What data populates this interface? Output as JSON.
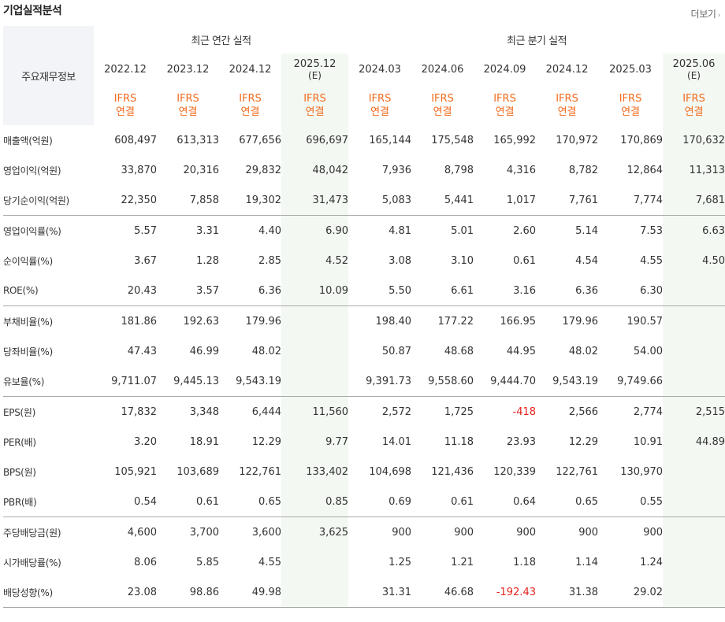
{
  "section_title": "기업실적분석",
  "more_label": "더보기",
  "key_header": "주요재무정보",
  "groups": {
    "annual": "최근 연간 실적",
    "quarter": "최근 분기 실적"
  },
  "periods": [
    {
      "label": "2022.12",
      "est": false
    },
    {
      "label": "2023.12",
      "est": false
    },
    {
      "label": "2024.12",
      "est": false
    },
    {
      "label": "2025.12",
      "est": true
    },
    {
      "label": "2024.03",
      "est": false
    },
    {
      "label": "2024.06",
      "est": false
    },
    {
      "label": "2024.09",
      "est": false
    },
    {
      "label": "2024.12",
      "est": false
    },
    {
      "label": "2025.03",
      "est": false
    },
    {
      "label": "2025.06",
      "est": true
    }
  ],
  "est_mark": "(E)",
  "ifrs_label": "IFRS",
  "consolidated_label": "연결",
  "rows": [
    {
      "label": "매출액(억원)",
      "values": [
        "608,497",
        "613,313",
        "677,656",
        "696,697",
        "165,144",
        "175,548",
        "165,992",
        "170,972",
        "170,869",
        "170,632"
      ]
    },
    {
      "label": "영업이익(억원)",
      "values": [
        "33,870",
        "20,316",
        "29,832",
        "48,042",
        "7,936",
        "8,798",
        "4,316",
        "8,782",
        "12,864",
        "11,313"
      ]
    },
    {
      "label": "당기순이익(억원)",
      "values": [
        "22,350",
        "7,858",
        "19,302",
        "31,473",
        "5,083",
        "5,441",
        "1,017",
        "7,761",
        "7,774",
        "7,681"
      ],
      "group_end": true
    },
    {
      "label": "영업이익률(%)",
      "values": [
        "5.57",
        "3.31",
        "4.40",
        "6.90",
        "4.81",
        "5.01",
        "2.60",
        "5.14",
        "7.53",
        "6.63"
      ]
    },
    {
      "label": "순이익률(%)",
      "values": [
        "3.67",
        "1.28",
        "2.85",
        "4.52",
        "3.08",
        "3.10",
        "0.61",
        "4.54",
        "4.55",
        "4.50"
      ]
    },
    {
      "label": "ROE(%)",
      "values": [
        "20.43",
        "3.57",
        "6.36",
        "10.09",
        "5.50",
        "6.61",
        "3.16",
        "6.36",
        "6.30",
        ""
      ],
      "group_end": true
    },
    {
      "label": "부채비율(%)",
      "values": [
        "181.86",
        "192.63",
        "179.96",
        "",
        "198.40",
        "177.22",
        "166.95",
        "179.96",
        "190.57",
        ""
      ]
    },
    {
      "label": "당좌비율(%)",
      "values": [
        "47.43",
        "46.99",
        "48.02",
        "",
        "50.87",
        "48.68",
        "44.95",
        "48.02",
        "54.00",
        ""
      ]
    },
    {
      "label": "유보율(%)",
      "values": [
        "9,711.07",
        "9,445.13",
        "9,543.19",
        "",
        "9,391.73",
        "9,558.60",
        "9,444.70",
        "9,543.19",
        "9,749.66",
        ""
      ],
      "group_end": true
    },
    {
      "label": "EPS(원)",
      "values": [
        "17,832",
        "3,348",
        "6,444",
        "11,560",
        "2,572",
        "1,725",
        "-418",
        "2,566",
        "2,774",
        "2,515"
      ]
    },
    {
      "label": "PER(배)",
      "values": [
        "3.20",
        "18.91",
        "12.29",
        "9.77",
        "14.01",
        "11.18",
        "23.93",
        "12.29",
        "10.91",
        "44.89"
      ]
    },
    {
      "label": "BPS(원)",
      "values": [
        "105,921",
        "103,689",
        "122,761",
        "133,402",
        "104,698",
        "121,436",
        "120,339",
        "122,761",
        "130,970",
        ""
      ]
    },
    {
      "label": "PBR(배)",
      "values": [
        "0.54",
        "0.61",
        "0.65",
        "0.85",
        "0.69",
        "0.61",
        "0.64",
        "0.65",
        "0.55",
        ""
      ],
      "group_end": true
    },
    {
      "label": "주당배당금(원)",
      "values": [
        "4,600",
        "3,700",
        "3,600",
        "3,625",
        "900",
        "900",
        "900",
        "900",
        "900",
        ""
      ]
    },
    {
      "label": "시가배당률(%)",
      "values": [
        "8.06",
        "5.85",
        "4.55",
        "",
        "1.25",
        "1.21",
        "1.18",
        "1.14",
        "1.24",
        ""
      ]
    },
    {
      "label": "배당성향(%)",
      "values": [
        "23.08",
        "98.86",
        "49.98",
        "",
        "31.31",
        "46.68",
        "-192.43",
        "31.38",
        "29.02",
        ""
      ]
    }
  ],
  "colors": {
    "ifrs_orange": "#f26b1d",
    "negative_red": "#e5231c",
    "estimate_bg": "#f3f8f3",
    "header_bg": "#f3f4f7"
  }
}
